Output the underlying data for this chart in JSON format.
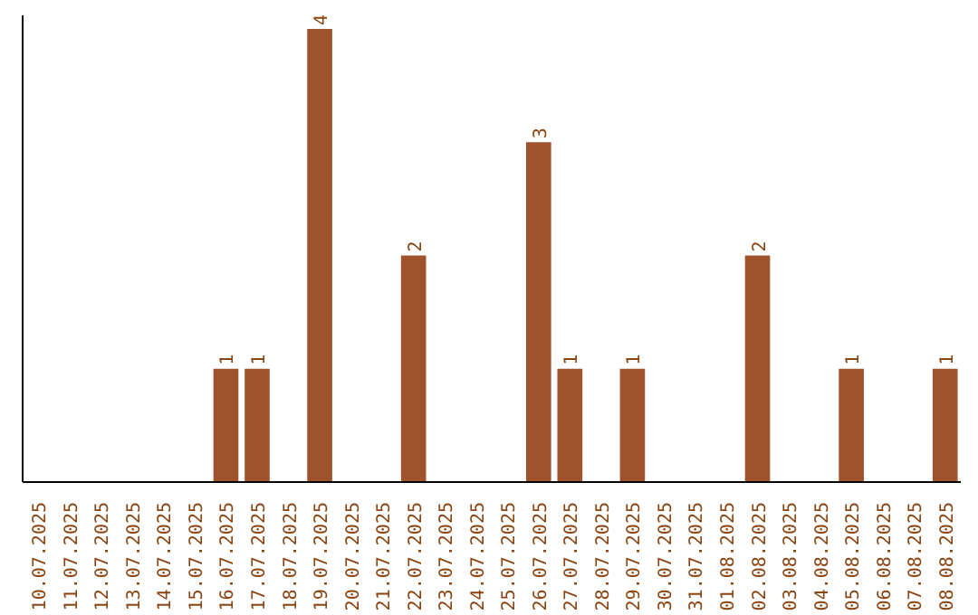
{
  "chart_data": {
    "type": "bar",
    "categories": [
      "10.07.2025",
      "11.07.2025",
      "12.07.2025",
      "13.07.2025",
      "14.07.2025",
      "15.07.2025",
      "16.07.2025",
      "17.07.2025",
      "18.07.2025",
      "19.07.2025",
      "20.07.2025",
      "21.07.2025",
      "22.07.2025",
      "23.07.2025",
      "24.07.2025",
      "25.07.2025",
      "26.07.2025",
      "27.07.2025",
      "28.07.2025",
      "29.07.2025",
      "30.07.2025",
      "31.07.2025",
      "01.08.2025",
      "02.08.2025",
      "03.08.2025",
      "04.08.2025",
      "05.08.2025",
      "06.08.2025",
      "07.08.2025",
      "08.08.2025"
    ],
    "values": [
      0,
      0,
      0,
      0,
      0,
      0,
      1,
      1,
      0,
      4,
      0,
      0,
      2,
      0,
      0,
      0,
      3,
      1,
      0,
      1,
      0,
      0,
      0,
      2,
      0,
      0,
      1,
      0,
      0,
      1
    ],
    "value_labels": [
      null,
      null,
      null,
      null,
      null,
      null,
      "1",
      "1",
      null,
      "4",
      null,
      null,
      "2",
      null,
      null,
      null,
      "3",
      "1",
      null,
      "1",
      null,
      null,
      null,
      "2",
      null,
      null,
      "1",
      null,
      null,
      "1"
    ],
    "color": "#a0522d",
    "grid": false,
    "tick_labels": "x"
  }
}
